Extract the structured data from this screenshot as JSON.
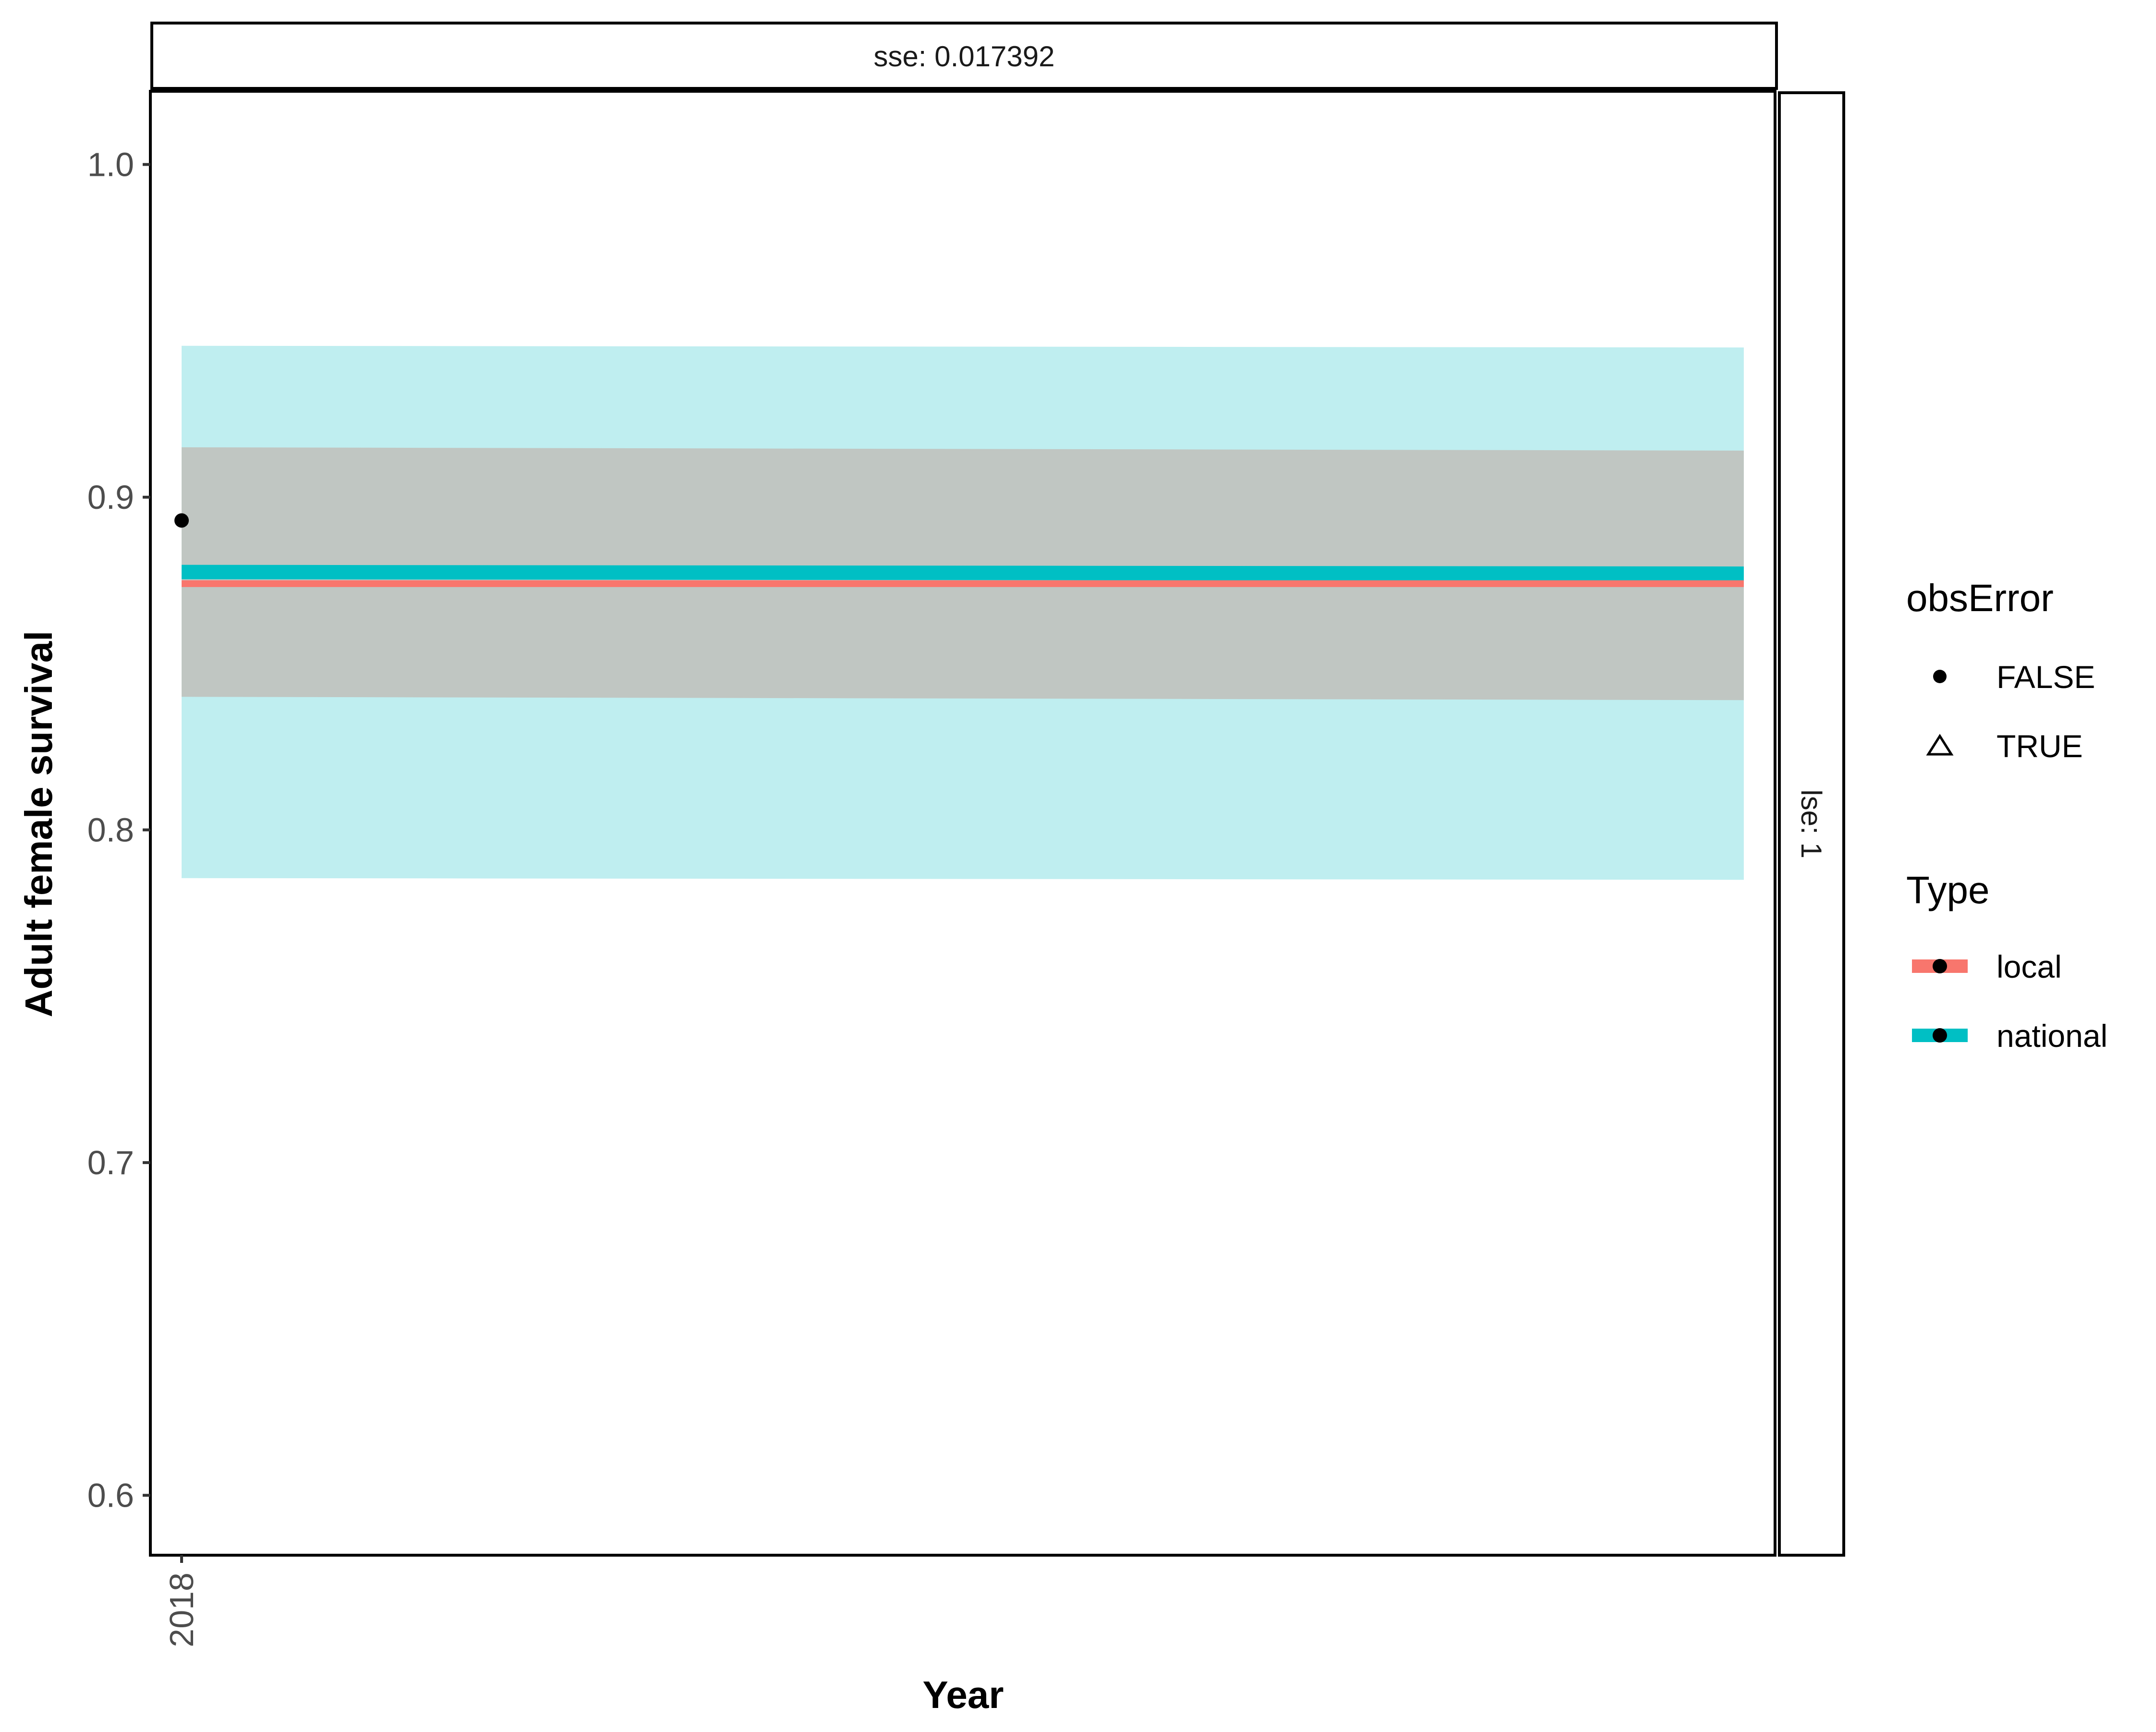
{
  "chart_data": {
    "type": "line",
    "facet_top_label": "sse: 0.017392",
    "facet_right_label": "lse: 1",
    "xlabel": "Year",
    "ylabel": "Adult female survival",
    "x_ticks": [
      "2018"
    ],
    "y_ticks": [
      0.6,
      0.7,
      0.8,
      0.9,
      1.0
    ],
    "y_tick_labels": [
      "0.6",
      "0.7",
      "0.8",
      "0.9",
      "1.0"
    ],
    "xlim": [
      2017.98,
      2019.02
    ],
    "ylim": [
      0.582,
      1.022
    ],
    "x_band_range": [
      2018,
      2019
    ],
    "series": [
      {
        "name": "national",
        "color": "#00BFC4",
        "band_color": "#BFEEF0",
        "mean": [
          0.8775,
          0.877
        ],
        "lower": [
          0.7855,
          0.785
        ],
        "upper": [
          0.9455,
          0.945
        ]
      },
      {
        "name": "local",
        "color": "#F8766D",
        "band_color": "#c0c6c2",
        "mean": [
          0.874,
          0.874
        ],
        "lower": [
          0.84,
          0.839
        ],
        "upper": [
          0.915,
          0.914
        ]
      }
    ],
    "points": [
      {
        "x": 2018,
        "y": 0.893,
        "obsError": "FALSE"
      }
    ],
    "legend": {
      "placement": "right",
      "obsError": {
        "title": "obsError",
        "entries": [
          {
            "label": "FALSE",
            "shape": "filled-circle"
          },
          {
            "label": "TRUE",
            "shape": "open-triangle"
          }
        ]
      },
      "type": {
        "title": "Type",
        "entries": [
          {
            "label": "local",
            "color": "#F8766D"
          },
          {
            "label": "national",
            "color": "#00BFC4"
          }
        ]
      }
    }
  }
}
